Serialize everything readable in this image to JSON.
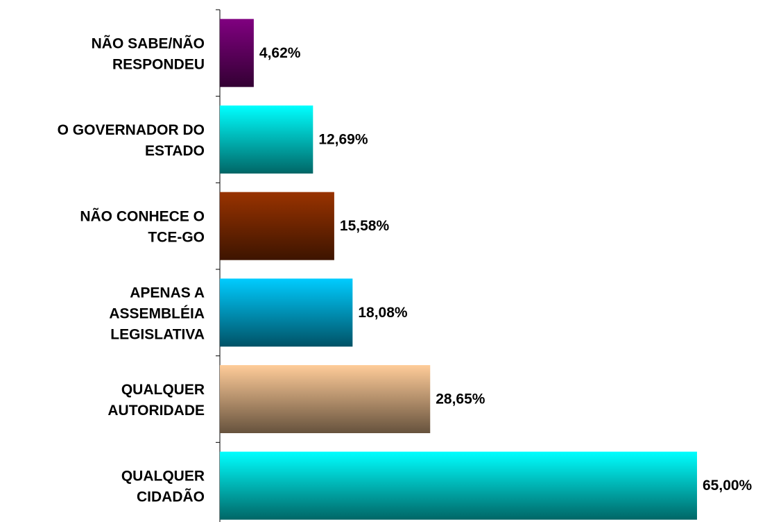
{
  "chart_data": {
    "type": "hbar",
    "categories": [
      "NÃO SABE/NÃO\nRESPONDEU",
      "O GOVERNADOR DO\nESTADO",
      "NÃO CONHECE O\nTCE-GO",
      "APENAS A\nASSEMBLÉIA\nLEGISLATIVA",
      "QUALQUER\nAUTORIDADE",
      "QUALQUER\nCIDADÃO"
    ],
    "values": [
      4.62,
      12.69,
      15.58,
      18.08,
      28.65,
      65.0
    ],
    "value_labels": [
      "4,62%",
      "12,69%",
      "15,58%",
      "18,08%",
      "28,65%",
      "65,00%"
    ],
    "colors": [
      "#800080",
      "#00ffff",
      "#993300",
      "#00ccff",
      "#ffcc99",
      "#00ffff"
    ]
  }
}
